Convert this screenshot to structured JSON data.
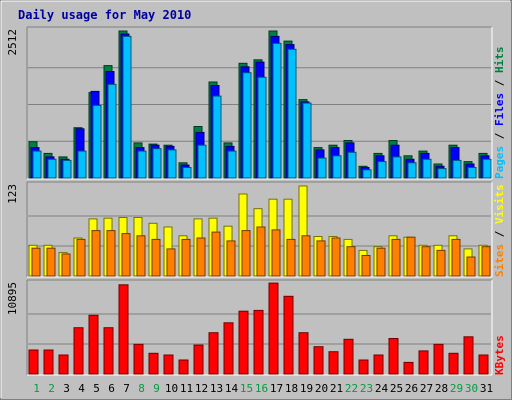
{
  "chart_data": {
    "type": "bar",
    "title": "Daily usage for May 2010",
    "categories": [
      "1",
      "2",
      "3",
      "4",
      "5",
      "6",
      "7",
      "8",
      "9",
      "10",
      "11",
      "12",
      "13",
      "14",
      "15",
      "16",
      "17",
      "18",
      "19",
      "20",
      "21",
      "22",
      "23",
      "24",
      "25",
      "26",
      "27",
      "28",
      "29",
      "30",
      "31"
    ],
    "weekend_days": [
      "1",
      "2",
      "8",
      "9",
      "15",
      "16",
      "22",
      "23",
      "29",
      "30"
    ],
    "panels": [
      {
        "id": "hits-files-pages",
        "max_label": "2512",
        "ymax": 2512,
        "legend": [
          "Pages",
          "/",
          "Files",
          "/",
          "Hits"
        ],
        "series": [
          {
            "name": "Hits",
            "color": "#008040",
            "values": [
              620,
              420,
              360,
              860,
              1460,
              1920,
              2512,
              600,
              580,
              560,
              260,
              880,
              1640,
              600,
              1960,
              2020,
              2512,
              2340,
              1340,
              520,
              560,
              640,
              200,
              420,
              640,
              380,
              460,
              240,
              560,
              280,
              420
            ]
          },
          {
            "name": "Files",
            "color": "#0000ff",
            "values": [
              520,
              360,
              320,
              840,
              1480,
              1820,
              2460,
              520,
              560,
              540,
              220,
              780,
              1580,
              540,
              1900,
              1980,
              2420,
              2280,
              1300,
              480,
              520,
              600,
              180,
              380,
              560,
              320,
              420,
              200,
              520,
              240,
              380
            ]
          },
          {
            "name": "Pages",
            "color": "#00c0ff",
            "values": [
              460,
              320,
              300,
              460,
              1240,
              1600,
              2420,
              460,
              500,
              480,
              180,
              560,
              1400,
              460,
              1800,
              1720,
              2300,
              2200,
              1280,
              340,
              380,
              440,
              140,
              280,
              360,
              260,
              320,
              160,
              300,
              180,
              320
            ]
          }
        ]
      },
      {
        "id": "visits-sites",
        "max_label": "123",
        "ymax": 123,
        "legend": [
          "Sites",
          "/",
          "Visits"
        ],
        "series": [
          {
            "name": "Visits",
            "color": "#ffff00",
            "values": [
              42,
              42,
              32,
              52,
              78,
              79,
              80,
              80,
              72,
              67,
              55,
              78,
              79,
              68,
              112,
              92,
              105,
              105,
              123,
              54,
              54,
              50,
              35,
              40,
              55,
              53,
              42,
              42,
              55,
              37,
              42
            ]
          },
          {
            "name": "Sites",
            "color": "#ff8000",
            "values": [
              38,
              38,
              30,
              50,
              62,
              62,
              58,
              55,
              50,
              37,
              50,
              52,
              60,
              48,
              62,
              67,
              63,
              50,
              55,
              48,
              52,
              40,
              28,
              38,
              50,
              53,
              40,
              35,
              50,
              26,
              40
            ]
          }
        ]
      },
      {
        "id": "kbytes",
        "max_label": "10895",
        "ymax": 10895,
        "legend": [
          "KBytes"
        ],
        "series": [
          {
            "name": "KBytes",
            "color": "#ff0000",
            "values": [
              2900,
              2900,
              2300,
              5600,
              7100,
              5600,
              10800,
              3600,
              2500,
              2300,
              1700,
              3500,
              5000,
              6200,
              7600,
              7700,
              11000,
              9400,
              5000,
              3300,
              2700,
              4200,
              1700,
              2300,
              4300,
              1400,
              2800,
              3600,
              2500,
              4500,
              2300
            ]
          }
        ]
      }
    ]
  }
}
